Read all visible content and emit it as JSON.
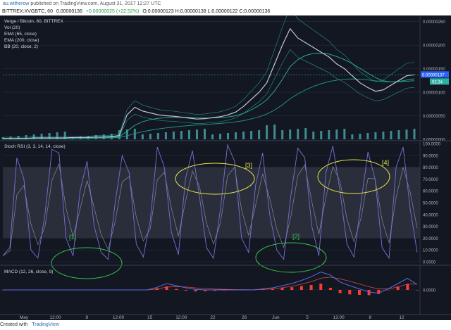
{
  "header": {
    "user": "au.witherow",
    "published": "published on TradingView.com, August 31, 2017 12:27 UTC"
  },
  "info": {
    "symbol": "BITTREX:XVGBTC, 60",
    "price": "0.00000136",
    "change": "+0.00000025 (+22.52%)",
    "ohlc": "O:0.00000123 H:0.00000138 L:0.00000122 C:0.00000136"
  },
  "footer": {
    "created": "Created with",
    "brand": "TradingView"
  },
  "colors": {
    "background": "#131722",
    "grid": "#2a2e39",
    "price_line": "#c0c8d8",
    "ema": "#2bb3a0",
    "bb": "#2bb3a0",
    "volume": "#4fbfc0",
    "rsi_k": "#7b6fd6",
    "rsi_d": "#8ea6b8",
    "band": "#3a3e4c",
    "ellipse_yellow": "#e4e64a",
    "ellipse_green": "#39c24b",
    "macd_line": "#5b6be0",
    "macd_hist": "#ff3b30",
    "current_price_bg": "#2962ff"
  },
  "chart_data": [
    {
      "type": "line",
      "panel": "price",
      "legend": [
        "Verge / Bitcoin, 60, BITTREX",
        "Vol (20)",
        "EMA (65, close)",
        "EMA (200, close)",
        "BB (20, close, 2)"
      ],
      "x_labels": [
        "May",
        "12:00",
        "8",
        "12:00",
        "15",
        "12:00",
        "22",
        "26",
        "Jun",
        "5",
        "12:00",
        "8",
        "12"
      ],
      "y_ticks": [
        "0.00000250",
        "0.00000200",
        "0.00000150",
        "0.00000100",
        "0.00000050",
        "0.00000000"
      ],
      "ylim": [
        0,
        2.6e-06
      ],
      "current_price": "0.00000137",
      "current_level": "92.34",
      "series": [
        {
          "values": [
            2e-08,
            2e-08,
            2e-08,
            2e-08,
            3e-08,
            3e-08,
            3e-08,
            3e-08,
            3e-08,
            4e-08,
            4e-08,
            4e-08,
            5e-08,
            5e-08,
            6e-08,
            8e-08,
            5.2e-07,
            6.8e-07,
            6e-07,
            5.6e-07,
            5.2e-07,
            5e-07,
            4.9e-07,
            4.7e-07,
            4.5e-07,
            4.3e-07,
            4.4e-07,
            4.6e-07,
            4.8e-07,
            5.2e-07,
            5.8e-07,
            7e-07,
            8.5e-07,
            1e-06,
            1.2e-06,
            1.6e-06,
            2e-06,
            2.35e-06,
            2.15e-06,
            2.05e-06,
            1.95e-06,
            1.85e-06,
            1.75e-06,
            1.6e-06,
            1.5e-06,
            1.35e-06,
            1.2e-06,
            1.1e-06,
            1.02e-06,
            1.05e-06,
            1.15e-06,
            1.25e-06,
            1.35e-06,
            1.37e-06
          ]
        }
      ]
    },
    {
      "type": "line",
      "panel": "stoch_rsi",
      "legend": "Stoch RSI (3, 3, 14, 14, close)",
      "y_ticks": [
        "100.0000",
        "90.0000",
        "80.0000",
        "70.0000",
        "60.0000",
        "50.0000",
        "40.0000",
        "30.0000",
        "20.0000",
        "10.0000",
        "0.0000"
      ],
      "ylim": [
        0,
        100
      ],
      "band": [
        20,
        80
      ],
      "annotations": [
        "[1]",
        "[2]",
        "[3]",
        "[4]"
      ],
      "series": [
        {
          "values": [
            5,
            12,
            88,
            70,
            10,
            3,
            40,
            95,
            92,
            20,
            5,
            60,
            85,
            30,
            8,
            2,
            50,
            90,
            75,
            15,
            4,
            35,
            97,
            80,
            25,
            6,
            70,
            94,
            55,
            12,
            3,
            45,
            99,
            85,
            20,
            8,
            65,
            92,
            40,
            10,
            2,
            55,
            96,
            88,
            30,
            5,
            75,
            98,
            60,
            15,
            4,
            50,
            93,
            70,
            12,
            3,
            80,
            97,
            45,
            8
          ]
        }
      ]
    },
    {
      "type": "line",
      "panel": "macd",
      "legend": "MACD (12, 26, close, 9)",
      "y_ticks": [
        "0.0000"
      ],
      "ylim": [
        -4e-08,
        4e-08
      ],
      "series": [
        {
          "values": [
            0,
            0,
            0,
            0,
            0,
            0,
            0,
            0,
            0,
            0,
            0,
            0,
            0,
            0,
            0,
            0,
            5e-09,
            1.2e-08,
            8e-09,
            4e-09,
            1e-09,
            0,
            0,
            0,
            0,
            0,
            0,
            2e-09,
            4e-09,
            8e-09,
            1.2e-08,
            1.8e-08,
            2.5e-08,
            3.4e-08,
            2.8e-08,
            1.5e-08,
            8e-09,
            2e-09,
            -4e-09,
            -6e-09,
            2e-09,
            1.2e-08,
            2.2e-08,
            1e-08
          ]
        }
      ]
    }
  ]
}
